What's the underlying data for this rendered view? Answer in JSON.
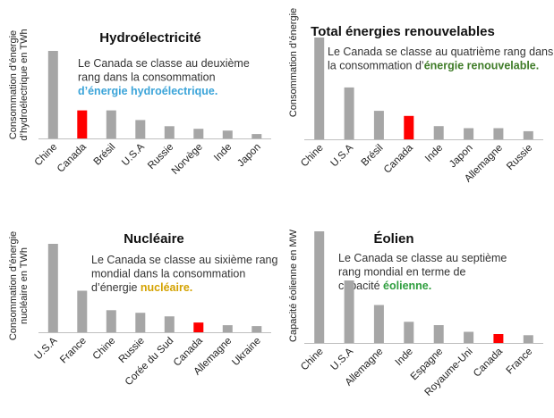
{
  "colors": {
    "bar": "#A6A6A6",
    "highlight": "#FF0000",
    "axis": "#BFBFBF"
  },
  "chart_data": [
    {
      "type": "bar",
      "title": "Hydroélectricité",
      "ylabel": "Consommation d’énergie d’hydroélectrique en TWh",
      "ylabel_lines": [
        "Consommation d’énergie",
        "d’hydroélectrique en TWh"
      ],
      "description_lines": [
        "Le Canada se classe au deuxième",
        "rang dans la consommation"
      ],
      "description_emphasis": "d’énergie hydroélectrique.",
      "emphasis_color": "#3BA4D9",
      "categories": [
        "Chine",
        "Canada",
        "Brésil",
        "U.S.A",
        "Russie",
        "Norvège",
        "Inde",
        "Japon"
      ],
      "values": [
        100,
        32,
        32,
        21,
        14,
        11,
        9,
        5
      ],
      "highlight": "Canada",
      "ylim": [
        0,
        100
      ]
    },
    {
      "type": "bar",
      "title": "Total énergies renouvelables",
      "ylabel": "Consommation d’énergie",
      "ylabel_lines": [
        "Consommation d’énergie"
      ],
      "description_lines": [
        "Le Canada se classe au quatrième rang dans"
      ],
      "description_last_prefix": "la consommation d’",
      "description_emphasis": "énergie renouvelable.",
      "emphasis_color": "#3E7B27",
      "categories": [
        "Chine",
        "U.S.A",
        "Brésil",
        "Canada",
        "Inde",
        "Japon",
        "Allemagne",
        "Russie"
      ],
      "values": [
        100,
        51,
        28,
        23,
        13,
        11,
        11,
        8
      ],
      "highlight": "Canada",
      "ylim": [
        0,
        100
      ]
    },
    {
      "type": "bar",
      "title": "Nucléaire",
      "ylabel": "Consommation d’énergie nucléaire en TWh",
      "ylabel_lines": [
        "Consommation d’énergie",
        "nucléaire en TWh"
      ],
      "description_lines": [
        "Le Canada se classe au sixième rang",
        "mondial dans la consommation"
      ],
      "description_last_prefix": "d’énergie ",
      "description_emphasis": "nucléaire.",
      "emphasis_color": "#D4A200",
      "categories": [
        "U.S.A",
        "France",
        "Chine",
        "Russie",
        "Corée du Sud",
        "Canada",
        "Allemagne",
        "Ukraine"
      ],
      "values": [
        100,
        47,
        25,
        22,
        18,
        11,
        8,
        7
      ],
      "highlight": "Canada",
      "ylim": [
        0,
        100
      ]
    },
    {
      "type": "bar",
      "title": "Éolien",
      "ylabel": "Capacité éolienne en MW",
      "ylabel_lines": [
        "Capacité éolienne en MW"
      ],
      "description_lines": [
        "Le Canada se classe au septième",
        "rang mondial en terme de"
      ],
      "description_last_prefix": "capacité ",
      "description_emphasis": "éolienne.",
      "emphasis_color": "#2E9E3E",
      "categories": [
        "Chine",
        "U.S.A",
        "Allemagne",
        "Inde",
        "Espagne",
        "Royaume-Uni",
        "Canada",
        "France"
      ],
      "values": [
        100,
        56,
        34,
        19,
        16,
        10,
        8,
        7
      ],
      "highlight": "Canada",
      "ylim": [
        0,
        100
      ]
    }
  ]
}
